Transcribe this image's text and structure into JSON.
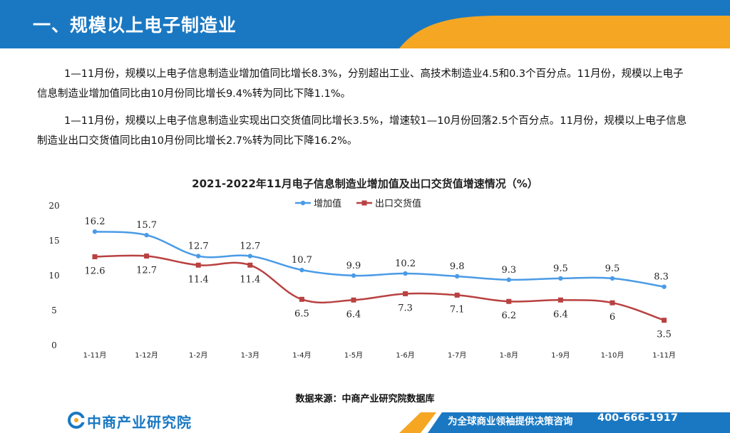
{
  "header": {
    "title": "一、规模以上电子制造业"
  },
  "paragraphs": [
    "1—11月份，规模以上电子信息制造业增加值同比增长8.3%，分别超出工业、高技术制造业4.5和0.3个百分点。11月份，规模以上电子信息制造业增加值同比由10月份同比增长9.4%转为同比下降1.1%。",
    "1—11月份，规模以上电子信息制造业实现出口交货值同比增长3.5%，增速较1—10月份回落2.5个百分点。11月份，规模以上电子信息制造业出口交货值同比由10月份同比增长2.7%转为同比下降16.2%。"
  ],
  "chart_data": {
    "type": "line",
    "title": "2021-2022年11月电子信息制造业增加值及出口交货值增速情况（%）",
    "categories": [
      "1-11月",
      "1-12月",
      "1-2月",
      "1-3月",
      "1-4月",
      "1-5月",
      "1-6月",
      "1-7月",
      "1-8月",
      "1-9月",
      "1-10月",
      "1-11月"
    ],
    "series": [
      {
        "name": "增加值",
        "values": [
          16.2,
          15.7,
          12.7,
          12.7,
          10.7,
          9.9,
          10.2,
          9.8,
          9.3,
          9.5,
          9.5,
          8.3
        ],
        "labels": [
          "16.2",
          "15.7",
          "12.7",
          "12.7",
          "10.7",
          "9.9",
          "10.2",
          "9.8",
          "9.3",
          "9.5",
          "9.5",
          "8.3"
        ],
        "color": "#4a9be6"
      },
      {
        "name": "出口交货值",
        "values": [
          12.6,
          12.7,
          11.4,
          11.4,
          6.5,
          6.4,
          7.3,
          7.1,
          6.2,
          6.4,
          6,
          3.5
        ],
        "labels": [
          "12.6",
          "12.7",
          "11.4",
          "11.4",
          "6.5",
          "6.4",
          "7.3",
          "7.1",
          "6.2",
          "6.4",
          "6",
          "3.5"
        ],
        "color": "#b94141"
      }
    ],
    "yticks": [
      "0",
      "5",
      "10",
      "15",
      "20"
    ],
    "ylim": [
      0,
      20
    ],
    "legend_position": "top-center",
    "grid": false
  },
  "source": "数据来源：中商产业研究院数据库",
  "footer": {
    "logo": "中商产业研究院",
    "slogan": "为全球商业领袖提供决策咨询",
    "phone": "400-666-1917"
  },
  "colors": {
    "header_blue": "#1a78c2",
    "accent_orange": "#f5a623",
    "line_blue": "#4a9be6",
    "line_red": "#b94141"
  }
}
